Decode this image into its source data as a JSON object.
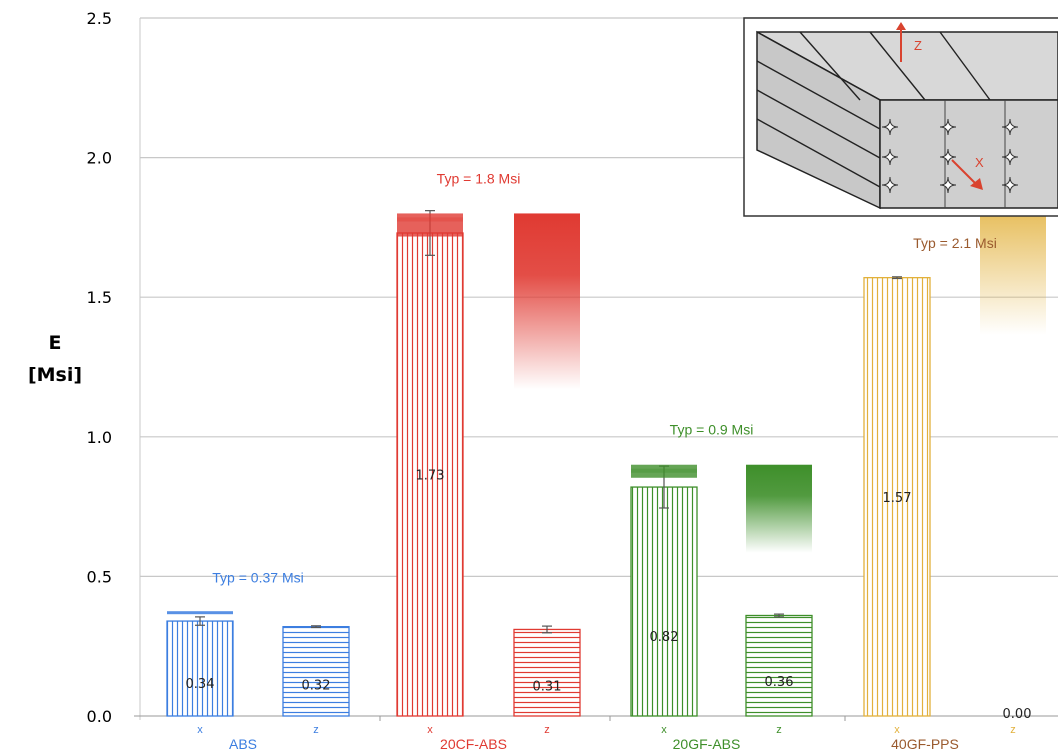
{
  "chart_data": {
    "type": "bar",
    "ylabel": [
      "E",
      "[Msi]"
    ],
    "ylim": [
      0,
      2.5
    ],
    "yticks": [
      "0.0",
      "0.5",
      "1.0",
      "1.5",
      "2.0",
      "2.5"
    ],
    "grid": true,
    "groups": [
      {
        "name": "ABS",
        "color": "#3c7ee0",
        "typ": 0.37,
        "typ_label": "Typ = 0.37 Msi",
        "bars": [
          {
            "orientation": "x",
            "value": 0.34,
            "label": "0.34",
            "err": 0.015,
            "pattern": "vertical"
          },
          {
            "orientation": "z",
            "value": 0.32,
            "label": "0.32",
            "err": 0.003,
            "pattern": "horizontal"
          }
        ]
      },
      {
        "name": "20CF-ABS",
        "color": "#e03a32",
        "typ": 1.8,
        "typ_label": "Typ = 1.8 Msi",
        "bars": [
          {
            "orientation": "x",
            "value": 1.73,
            "label": "1.73",
            "err": 0.08,
            "pattern": "vertical"
          },
          {
            "orientation": "z",
            "value": 0.31,
            "label": "0.31",
            "err": 0.012,
            "pattern": "horizontal"
          }
        ]
      },
      {
        "name": "20GF-ABS",
        "color": "#3e8f2a",
        "typ": 0.9,
        "typ_label": "Typ = 0.9 Msi",
        "bars": [
          {
            "orientation": "x",
            "value": 0.82,
            "label": "0.82",
            "err": 0.075,
            "pattern": "vertical"
          },
          {
            "orientation": "z",
            "value": 0.36,
            "label": "0.36",
            "err": 0.005,
            "pattern": "horizontal"
          }
        ]
      },
      {
        "name": "40GF-PPS",
        "color": "#e2b13c",
        "typ": 2.1,
        "typ_label": "Typ = 2.1 Msi",
        "label_color": "#9a5a2e",
        "bars": [
          {
            "orientation": "x",
            "value": 1.57,
            "label": "1.57",
            "err": 0.003,
            "pattern": "vertical"
          },
          {
            "orientation": "z",
            "value": 0.0,
            "label": "0.00",
            "err": 0,
            "pattern": "horizontal"
          }
        ]
      }
    ],
    "inset": {
      "labels": [
        "Z",
        "X"
      ],
      "arrow_color": "#d9432f"
    }
  }
}
